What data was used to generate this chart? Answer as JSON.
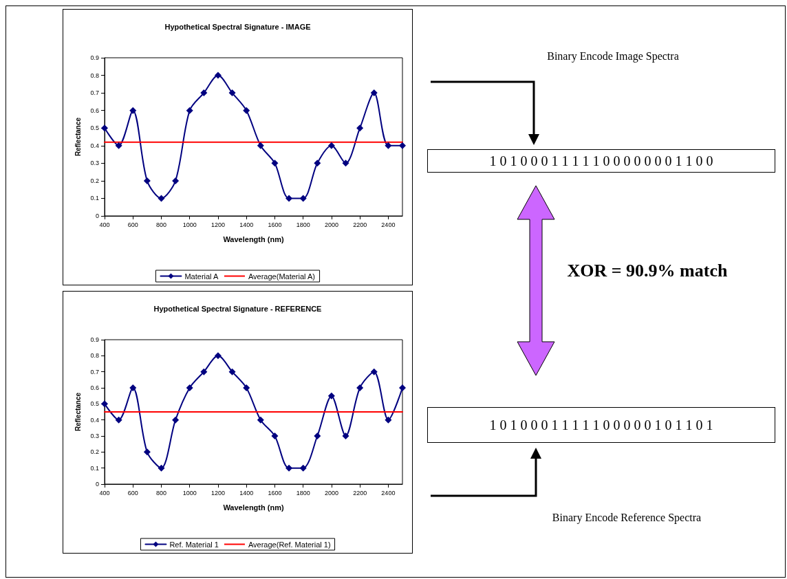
{
  "chart_data": [
    {
      "type": "line",
      "title": "Hypothetical Spectral Signature - IMAGE",
      "xlabel": "Wavelength (nm)",
      "ylabel": "Reflectance",
      "xlim": [
        400,
        2500
      ],
      "xticks": [
        400,
        600,
        800,
        1000,
        1200,
        1400,
        1600,
        1800,
        2000,
        2200,
        2400
      ],
      "ylim": [
        0,
        0.9
      ],
      "yticks": [
        0,
        0.1,
        0.2,
        0.3,
        0.4,
        0.5,
        0.6,
        0.7,
        0.8,
        0.9
      ],
      "grid": false,
      "legend": "bottom",
      "marker": "diamond",
      "series": [
        {
          "name": "Material A",
          "color": "#000080",
          "x": [
            400,
            500,
            600,
            700,
            800,
            900,
            1000,
            1100,
            1200,
            1300,
            1400,
            1500,
            1600,
            1700,
            1800,
            1900,
            2000,
            2100,
            2200,
            2300,
            2400,
            2500
          ],
          "values": [
            0.5,
            0.4,
            0.6,
            0.2,
            0.1,
            0.2,
            0.6,
            0.7,
            0.8,
            0.7,
            0.6,
            0.4,
            0.3,
            0.1,
            0.1,
            0.3,
            0.4,
            0.3,
            0.5,
            0.7,
            0.4,
            0.4
          ]
        },
        {
          "name": "Average(Material A)",
          "color": "#ff0000",
          "x": [
            400,
            2500
          ],
          "values": [
            0.42,
            0.42
          ],
          "marker": "none"
        }
      ]
    },
    {
      "type": "line",
      "title": "Hypothetical Spectral Signature - REFERENCE",
      "xlabel": "Wavelength (nm)",
      "ylabel": "Reflectance",
      "xlim": [
        400,
        2500
      ],
      "xticks": [
        400,
        600,
        800,
        1000,
        1200,
        1400,
        1600,
        1800,
        2000,
        2200,
        2400
      ],
      "ylim": [
        0,
        0.9
      ],
      "yticks": [
        0,
        0.1,
        0.2,
        0.3,
        0.4,
        0.5,
        0.6,
        0.7,
        0.8,
        0.9
      ],
      "grid": false,
      "legend": "bottom",
      "marker": "diamond",
      "series": [
        {
          "name": "Ref. Material 1",
          "color": "#000080",
          "x": [
            400,
            500,
            600,
            700,
            800,
            900,
            1000,
            1100,
            1200,
            1300,
            1400,
            1500,
            1600,
            1700,
            1800,
            1900,
            2000,
            2100,
            2200,
            2300,
            2400,
            2500
          ],
          "values": [
            0.5,
            0.4,
            0.6,
            0.2,
            0.1,
            0.4,
            0.6,
            0.7,
            0.8,
            0.7,
            0.6,
            0.4,
            0.3,
            0.1,
            0.1,
            0.3,
            0.55,
            0.3,
            0.6,
            0.7,
            0.4,
            0.6
          ]
        },
        {
          "name": "Average(Ref. Material 1)",
          "color": "#ff0000",
          "x": [
            400,
            2500
          ],
          "values": [
            0.45,
            0.45
          ],
          "marker": "none"
        }
      ]
    },
    {
      "type": "other",
      "annotations": [
        "Binary Encode Image Spectra",
        "1 0 1 0 0 0 1 1 1 1 1 0 0 0 0 0 0 0 1 1 0 0",
        "XOR = 90.9% match",
        "1 0 1 0 0 0 1 1 1 1 1 0 0 0 0 0 1 0 1 1 0 1",
        "Binary Encode Reference Spectra"
      ]
    }
  ]
}
